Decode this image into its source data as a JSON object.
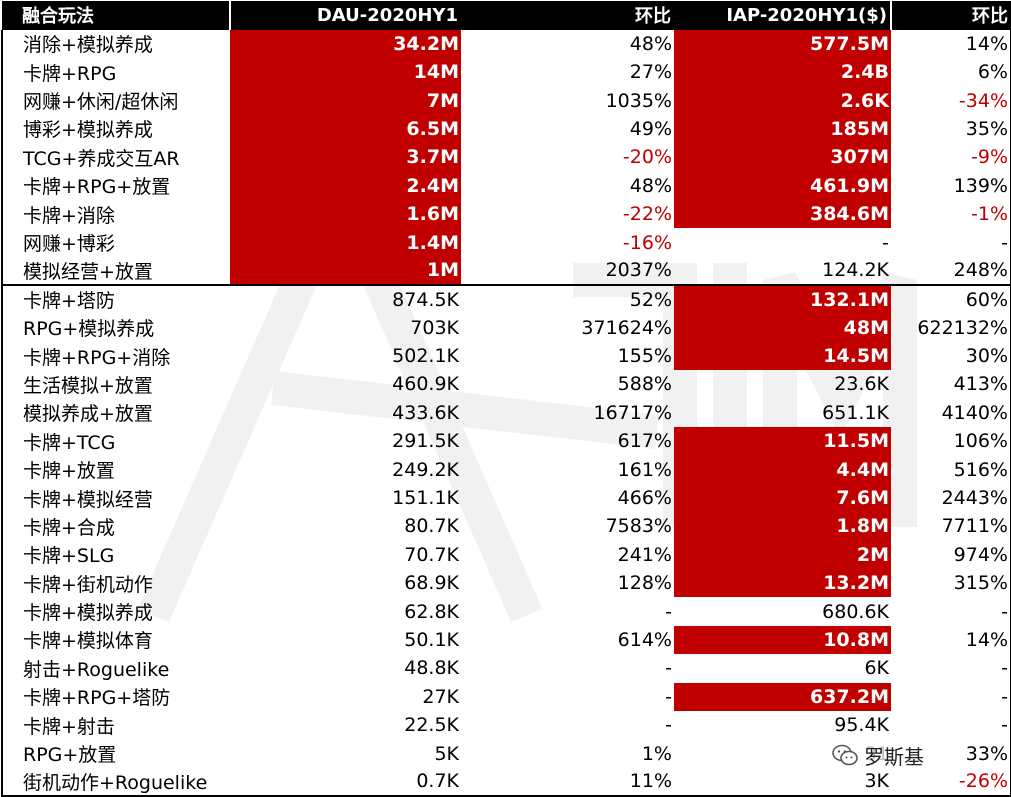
{
  "header": {
    "col1": "融合玩法",
    "col2": "DAU-2020HY1",
    "col3": "环比",
    "col4": "IAP-2020HY1($)",
    "col5": "环比"
  },
  "rows": [
    {
      "name": "消除+模拟养成",
      "dau": "34.2M",
      "dau_change": "48%",
      "iap": "577.5M",
      "iap_change": "14%",
      "dau_hl": true,
      "iap_hl": true
    },
    {
      "name": "卡牌+RPG",
      "dau": "14M",
      "dau_change": "27%",
      "iap": "2.4B",
      "iap_change": "6%",
      "dau_hl": true,
      "iap_hl": true
    },
    {
      "name": "网赚+休闲/超休闲",
      "dau": "7M",
      "dau_change": "1035%",
      "iap": "2.6K",
      "iap_change": "-34%",
      "dau_hl": true,
      "iap_hl": true,
      "iap_neg": true
    },
    {
      "name": "博彩+模拟养成",
      "dau": "6.5M",
      "dau_change": "49%",
      "iap": "185M",
      "iap_change": "35%",
      "dau_hl": true,
      "iap_hl": true
    },
    {
      "name": "TCG+养成交互AR",
      "dau": "3.7M",
      "dau_change": "-20%",
      "iap": "307M",
      "iap_change": "-9%",
      "dau_hl": true,
      "iap_hl": true,
      "dau_neg": true,
      "iap_neg": true
    },
    {
      "name": "卡牌+RPG+放置",
      "dau": "2.4M",
      "dau_change": "48%",
      "iap": "461.9M",
      "iap_change": "139%",
      "dau_hl": true,
      "iap_hl": true
    },
    {
      "name": "卡牌+消除",
      "dau": "1.6M",
      "dau_change": "-22%",
      "iap": "384.6M",
      "iap_change": "-1%",
      "dau_hl": true,
      "iap_hl": true,
      "dau_neg": true,
      "iap_neg": true
    },
    {
      "name": "网赚+博彩",
      "dau": "1.4M",
      "dau_change": "-16%",
      "iap": "-",
      "iap_change": "-",
      "dau_hl": true,
      "dau_neg": true
    },
    {
      "name": "模拟经营+放置",
      "dau": "1M",
      "dau_change": "2037%",
      "iap": "124.2K",
      "iap_change": "248%",
      "dau_hl": true
    },
    {
      "name": "卡牌+塔防",
      "dau": "874.5K",
      "dau_change": "52%",
      "iap": "132.1M",
      "iap_change": "60%",
      "iap_hl": true,
      "divider": true
    },
    {
      "name": "RPG+模拟养成",
      "dau": "703K",
      "dau_change": "371624%",
      "iap": "48M",
      "iap_change": "622132%",
      "iap_hl": true
    },
    {
      "name": "卡牌+RPG+消除",
      "dau": "502.1K",
      "dau_change": "155%",
      "iap": "14.5M",
      "iap_change": "30%",
      "iap_hl": true
    },
    {
      "name": "生活模拟+放置",
      "dau": "460.9K",
      "dau_change": "588%",
      "iap": "23.6K",
      "iap_change": "413%"
    },
    {
      "name": "模拟养成+放置",
      "dau": "433.6K",
      "dau_change": "16717%",
      "iap": "651.1K",
      "iap_change": "4140%"
    },
    {
      "name": "卡牌+TCG",
      "dau": "291.5K",
      "dau_change": "617%",
      "iap": "11.5M",
      "iap_change": "106%",
      "iap_hl": true
    },
    {
      "name": "卡牌+放置",
      "dau": "249.2K",
      "dau_change": "161%",
      "iap": "4.4M",
      "iap_change": "516%",
      "iap_hl": true
    },
    {
      "name": "卡牌+模拟经营",
      "dau": "151.1K",
      "dau_change": "466%",
      "iap": "7.6M",
      "iap_change": "2443%",
      "iap_hl": true
    },
    {
      "name": "卡牌+合成",
      "dau": "80.7K",
      "dau_change": "7583%",
      "iap": "1.8M",
      "iap_change": "7711%",
      "iap_hl": true
    },
    {
      "name": "卡牌+SLG",
      "dau": "70.7K",
      "dau_change": "241%",
      "iap": "2M",
      "iap_change": "974%",
      "iap_hl": true
    },
    {
      "name": "卡牌+街机动作",
      "dau": "68.9K",
      "dau_change": "128%",
      "iap": "13.2M",
      "iap_change": "315%",
      "iap_hl": true
    },
    {
      "name": "卡牌+模拟养成",
      "dau": "62.8K",
      "dau_change": "-",
      "iap": "680.6K",
      "iap_change": "-"
    },
    {
      "name": "卡牌+模拟体育",
      "dau": "50.1K",
      "dau_change": "614%",
      "iap": "10.8M",
      "iap_change": "14%",
      "iap_hl": true
    },
    {
      "name": "射击+Roguelike",
      "dau": "48.8K",
      "dau_change": "-",
      "iap": "6K",
      "iap_change": "-"
    },
    {
      "name": "卡牌+RPG+塔防",
      "dau": "27K",
      "dau_change": "-",
      "iap": "637.2M",
      "iap_change": "-",
      "iap_hl": true
    },
    {
      "name": "卡牌+射击",
      "dau": "22.5K",
      "dau_change": "-",
      "iap": "95.4K",
      "iap_change": "-"
    },
    {
      "name": "RPG+放置",
      "dau": "5K",
      "dau_change": "1%",
      "iap": "31",
      "iap_change": "33%"
    },
    {
      "name": "街机动作+Roguelike",
      "dau": "0.7K",
      "dau_change": "11%",
      "iap": "3K",
      "iap_change": "-26%",
      "iap_neg": true,
      "bottom": true
    }
  ],
  "watermark": {
    "badge_text": "罗斯基",
    "icon": "wechat-icon"
  },
  "colors": {
    "highlight": "#c00000",
    "negative": "#c00000",
    "header_bg": "#000000"
  }
}
